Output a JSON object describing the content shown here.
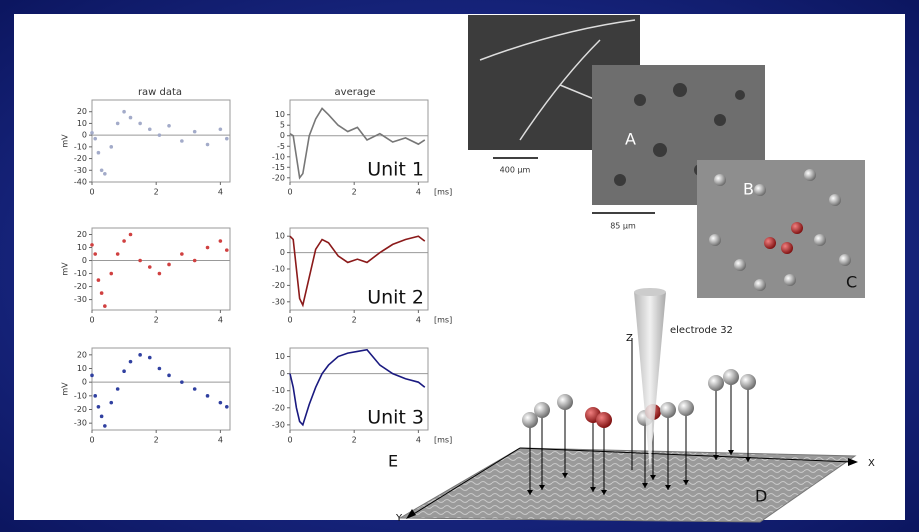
{
  "column_titles": [
    "raw data",
    "average"
  ],
  "chart_data": [
    {
      "type": "scatter",
      "color": "#a3abc9",
      "ylabel": "mV",
      "xlim": [
        0,
        4.3
      ],
      "xticks": [
        0,
        2,
        4
      ],
      "ylim": [
        -40,
        30
      ],
      "yticks": [
        -40,
        -30,
        -20,
        -10,
        0,
        10,
        20
      ],
      "x": [
        0,
        0.1,
        0.2,
        0.3,
        0.4,
        0.6,
        0.8,
        1.0,
        1.2,
        1.5,
        1.8,
        2.1,
        2.4,
        2.8,
        3.2,
        3.6,
        4.0,
        4.2
      ],
      "values": [
        2,
        -3,
        -15,
        -30,
        -33,
        -10,
        10,
        20,
        15,
        10,
        5,
        0,
        8,
        -5,
        3,
        -8,
        5,
        -3
      ]
    },
    {
      "type": "line",
      "color": "#777777",
      "xlabel": "[ms]",
      "annotation": "Unit 1",
      "xlim": [
        0,
        4.3
      ],
      "xticks": [
        0,
        2,
        4
      ],
      "ylim": [
        -22,
        17
      ],
      "yticks": [
        -20,
        -15,
        -10,
        -5,
        0,
        5,
        10
      ],
      "x": [
        0,
        0.1,
        0.2,
        0.3,
        0.4,
        0.6,
        0.8,
        1.0,
        1.2,
        1.5,
        1.8,
        2.1,
        2.4,
        2.8,
        3.2,
        3.6,
        4.0,
        4.2
      ],
      "values": [
        1,
        0,
        -10,
        -20,
        -18,
        0,
        8,
        13,
        10,
        5,
        2,
        4,
        -2,
        1,
        -3,
        -1,
        -4,
        -2
      ]
    },
    {
      "type": "scatter",
      "color": "#d04040",
      "ylabel": "mV",
      "xlim": [
        0,
        4.3
      ],
      "xticks": [
        0,
        2,
        4
      ],
      "ylim": [
        -38,
        25
      ],
      "yticks": [
        -30,
        -20,
        -10,
        0,
        10,
        20
      ],
      "x": [
        0,
        0.1,
        0.2,
        0.3,
        0.4,
        0.6,
        0.8,
        1.0,
        1.2,
        1.5,
        1.8,
        2.1,
        2.4,
        2.8,
        3.2,
        3.6,
        4.0,
        4.2
      ],
      "values": [
        12,
        5,
        -15,
        -25,
        -35,
        -10,
        5,
        15,
        20,
        0,
        -5,
        -10,
        -3,
        5,
        0,
        10,
        15,
        8
      ]
    },
    {
      "type": "line",
      "color": "#8b1a1a",
      "xlabel": "[ms]",
      "annotation": "Unit 2",
      "xlim": [
        0,
        4.3
      ],
      "xticks": [
        0,
        2,
        4
      ],
      "ylim": [
        -35,
        15
      ],
      "yticks": [
        -30,
        -20,
        -10,
        0,
        10
      ],
      "x": [
        0,
        0.1,
        0.2,
        0.3,
        0.4,
        0.6,
        0.8,
        1.0,
        1.2,
        1.5,
        1.8,
        2.1,
        2.4,
        2.8,
        3.2,
        3.6,
        4.0,
        4.2
      ],
      "values": [
        10,
        8,
        -10,
        -28,
        -32,
        -15,
        2,
        8,
        6,
        -2,
        -6,
        -4,
        -6,
        0,
        5,
        8,
        10,
        7
      ]
    },
    {
      "type": "scatter",
      "color": "#3040a0",
      "ylabel": "mV",
      "xlim": [
        0,
        4.3
      ],
      "xticks": [
        0,
        2,
        4
      ],
      "ylim": [
        -35,
        25
      ],
      "yticks": [
        -30,
        -20,
        -10,
        0,
        10,
        20
      ],
      "x": [
        0,
        0.1,
        0.2,
        0.3,
        0.4,
        0.6,
        0.8,
        1.0,
        1.2,
        1.5,
        1.8,
        2.1,
        2.4,
        2.8,
        3.2,
        3.6,
        4.0,
        4.2
      ],
      "values": [
        5,
        -10,
        -18,
        -25,
        -32,
        -15,
        -5,
        8,
        15,
        20,
        18,
        10,
        5,
        0,
        -5,
        -10,
        -15,
        -18
      ]
    },
    {
      "type": "line",
      "color": "#1a1a80",
      "xlabel": "[ms]",
      "annotation": "Unit 3",
      "xlim": [
        0,
        4.3
      ],
      "xticks": [
        0,
        2,
        4
      ],
      "ylim": [
        -33,
        15
      ],
      "yticks": [
        -30,
        -20,
        -10,
        0,
        10
      ],
      "x": [
        0,
        0.1,
        0.2,
        0.3,
        0.4,
        0.6,
        0.8,
        1.0,
        1.2,
        1.5,
        1.8,
        2.1,
        2.4,
        2.8,
        3.2,
        3.6,
        4.0,
        4.2
      ],
      "values": [
        0,
        -8,
        -20,
        -28,
        -30,
        -18,
        -8,
        0,
        5,
        10,
        12,
        13,
        14,
        5,
        0,
        -3,
        -5,
        -8
      ]
    }
  ],
  "panel_labels": [
    "A",
    "B",
    "C",
    "D",
    "E"
  ],
  "scale_bars": [
    "400 µm",
    "85 µm"
  ],
  "electrode_label": "electrode 32",
  "axis_letters": [
    "Z",
    "X",
    "Y"
  ]
}
